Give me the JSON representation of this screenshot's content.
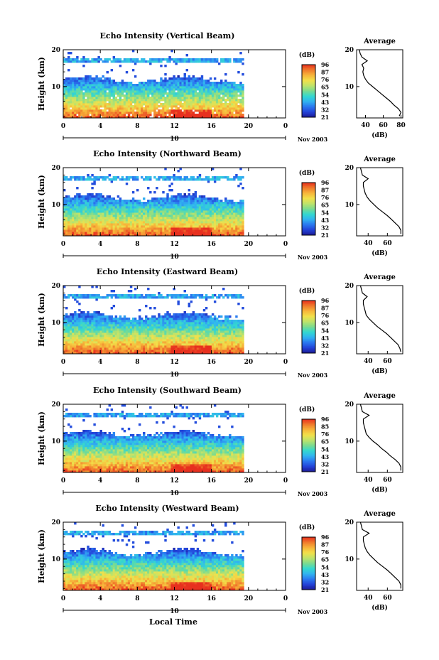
{
  "figure": {
    "x_axis_title": "Local Time",
    "date_label": "Nov 2003",
    "date_axis_label": "10",
    "colorbar_unit": "(dB)",
    "profile_title": "Average",
    "profile_xlabel": "(dB)",
    "y_axis_title": "Height (km)"
  },
  "colors": {
    "scale": [
      "#1d1a96",
      "#2343d8",
      "#2b79f0",
      "#31b4f0",
      "#34d8cf",
      "#7cdb8f",
      "#bfe36a",
      "#f2e04a",
      "#f7b43a",
      "#f07a2c",
      "#e7301f"
    ]
  },
  "chart_data": [
    {
      "type": "heatmap",
      "title": "Echo Intensity (Vertical Beam)",
      "xlabel": "Local Time",
      "ylabel": "Height (km)",
      "x_ticks": [
        "0",
        "4",
        "8",
        "12",
        "16",
        "20",
        "0"
      ],
      "xlim": [
        0,
        24
      ],
      "y_ticks": [
        "10",
        "20"
      ],
      "ylim": [
        1.5,
        20
      ],
      "data_x_range": [
        0,
        19.5
      ],
      "colorbar": {
        "label": "(dB)",
        "ticks": [
          "96",
          "87",
          "76",
          "65",
          "54",
          "43",
          "32",
          "21"
        ]
      },
      "profile": {
        "title": "Average",
        "xlabel": "(dB)",
        "x_ticks": [
          "40",
          "60",
          "80"
        ],
        "xlim": [
          30,
          82
        ],
        "y_ticks": [
          "10",
          "20"
        ],
        "ylim": [
          1.5,
          20
        ],
        "height": [
          2,
          3,
          4,
          5,
          6,
          7,
          8,
          9,
          10,
          11,
          12,
          13,
          14,
          15,
          16,
          17,
          18,
          19,
          20
        ],
        "db": [
          78,
          80,
          77,
          72,
          68,
          63,
          58,
          53,
          48,
          43,
          40,
          38,
          37,
          38,
          36,
          42,
          36,
          34,
          33
        ]
      }
    },
    {
      "type": "heatmap",
      "title": "Echo Intensity (Northward Beam)",
      "xlabel": "Local Time",
      "ylabel": "Height (km)",
      "x_ticks": [
        "0",
        "4",
        "8",
        "12",
        "16",
        "20",
        "0"
      ],
      "xlim": [
        0,
        24
      ],
      "y_ticks": [
        "10",
        "20"
      ],
      "ylim": [
        1.5,
        20
      ],
      "data_x_range": [
        0,
        19.5
      ],
      "colorbar": {
        "label": "(dB)",
        "ticks": [
          "96",
          "87",
          "76",
          "65",
          "54",
          "43",
          "32",
          "21"
        ]
      },
      "profile": {
        "title": "Average",
        "xlabel": "(dB)",
        "x_ticks": [
          "40",
          "60"
        ],
        "xlim": [
          28,
          76
        ],
        "y_ticks": [
          "10",
          "20"
        ],
        "ylim": [
          1.5,
          20
        ],
        "height": [
          2,
          3,
          4,
          5,
          6,
          7,
          8,
          9,
          10,
          11,
          12,
          13,
          14,
          15,
          16,
          17,
          18,
          19,
          20
        ],
        "db": [
          74,
          74,
          72,
          68,
          64,
          60,
          55,
          50,
          46,
          42,
          39,
          37,
          36,
          35,
          35,
          40,
          34,
          33,
          32
        ]
      }
    },
    {
      "type": "heatmap",
      "title": "Echo Intensity (Eastward Beam)",
      "xlabel": "Local Time",
      "ylabel": "Height (km)",
      "x_ticks": [
        "0",
        "4",
        "8",
        "12",
        "16",
        "20",
        "0"
      ],
      "xlim": [
        0,
        24
      ],
      "y_ticks": [
        "10",
        "20"
      ],
      "ylim": [
        1.5,
        20
      ],
      "data_x_range": [
        0,
        19.5
      ],
      "colorbar": {
        "label": "(dB)",
        "ticks": [
          "96",
          "87",
          "76",
          "65",
          "54",
          "43",
          "32",
          "21"
        ]
      },
      "profile": {
        "title": "Average",
        "xlabel": "(dB)",
        "x_ticks": [
          "40",
          "60"
        ],
        "xlim": [
          28,
          76
        ],
        "y_ticks": [
          "10",
          "20"
        ],
        "ylim": [
          1.5,
          20
        ],
        "height": [
          2,
          3,
          4,
          5,
          6,
          7,
          8,
          9,
          10,
          11,
          12,
          13,
          14,
          15,
          16,
          17,
          18,
          19,
          20
        ],
        "db": [
          74,
          73,
          71,
          67,
          63,
          59,
          54,
          49,
          45,
          41,
          38,
          37,
          36,
          35,
          35,
          39,
          34,
          33,
          32
        ]
      }
    },
    {
      "type": "heatmap",
      "title": "Echo Intensity (Southward Beam)",
      "xlabel": "Local Time",
      "ylabel": "Height (km)",
      "x_ticks": [
        "0",
        "4",
        "8",
        "12",
        "16",
        "20",
        "0"
      ],
      "xlim": [
        0,
        24
      ],
      "y_ticks": [
        "10",
        "20"
      ],
      "ylim": [
        1.5,
        20
      ],
      "data_x_range": [
        0,
        19.5
      ],
      "colorbar": {
        "label": "(dB)",
        "ticks": [
          "96",
          "85",
          "76",
          "65",
          "54",
          "43",
          "32",
          "21"
        ]
      },
      "profile": {
        "title": "Average",
        "xlabel": "(dB)",
        "x_ticks": [
          "40",
          "60"
        ],
        "xlim": [
          28,
          76
        ],
        "y_ticks": [
          "10",
          "20"
        ],
        "ylim": [
          1.5,
          20
        ],
        "height": [
          2,
          3,
          4,
          5,
          6,
          7,
          8,
          9,
          10,
          11,
          12,
          13,
          14,
          15,
          16,
          17,
          18,
          19,
          20
        ],
        "db": [
          74,
          74,
          72,
          68,
          63,
          59,
          54,
          50,
          45,
          41,
          38,
          37,
          36,
          35,
          35,
          41,
          34,
          33,
          32
        ]
      }
    },
    {
      "type": "heatmap",
      "title": "Echo Intensity (Westward Beam)",
      "xlabel": "Local Time",
      "ylabel": "Height (km)",
      "x_ticks": [
        "0",
        "4",
        "8",
        "12",
        "16",
        "20",
        "0"
      ],
      "xlim": [
        0,
        24
      ],
      "y_ticks": [
        "10",
        "20"
      ],
      "ylim": [
        1.5,
        20
      ],
      "data_x_range": [
        0,
        19.5
      ],
      "colorbar": {
        "label": "(dB)",
        "ticks": [
          "96",
          "87",
          "76",
          "65",
          "54",
          "43",
          "32",
          "21"
        ]
      },
      "profile": {
        "title": "Average",
        "xlabel": "(dB)",
        "x_ticks": [
          "40",
          "60"
        ],
        "xlim": [
          28,
          76
        ],
        "y_ticks": [
          "10",
          "20"
        ],
        "ylim": [
          1.5,
          20
        ],
        "height": [
          2,
          3,
          4,
          5,
          6,
          7,
          8,
          9,
          10,
          11,
          12,
          13,
          14,
          15,
          16,
          17,
          18,
          19,
          20
        ],
        "db": [
          74,
          74,
          72,
          68,
          64,
          60,
          55,
          50,
          46,
          42,
          39,
          37,
          36,
          35,
          35,
          41,
          34,
          33,
          32
        ]
      }
    }
  ]
}
